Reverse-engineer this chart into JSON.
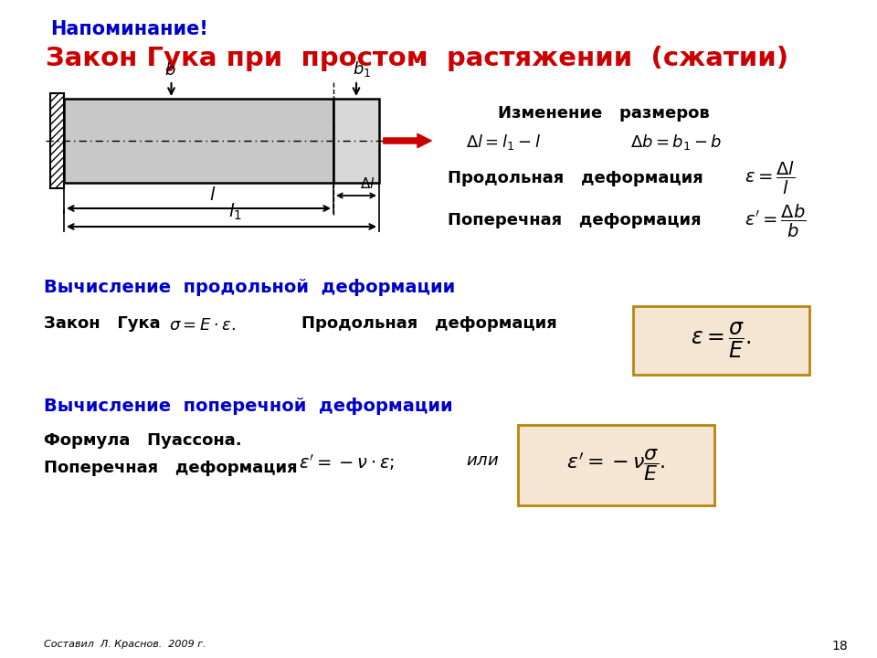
{
  "title_reminder": "Напоминание!",
  "title_main": "Закон Гука при  простом  растяжении  (сжатии)",
  "section1_title": "Вычисление  продольной  деформации",
  "section2_title": "Вычисление  поперечной  деформации",
  "label_izmeneniye": "Изменение   размеров",
  "label_prodol": "Продольная   деформация",
  "label_poperech": "Поперечная   деформация",
  "label_zakon": "Закон   Гука",
  "label_prodol2": "Продольная   деформация",
  "label_puasson1": "Формула   Пуассона.",
  "label_puasson2": "Поперечная   деформация",
  "footer": "Составил  Л. Краснов.  2009 г.",
  "page_num": "18",
  "bg_color": "#ffffff",
  "red_color": "#cc0000",
  "blue_color": "#0000cc",
  "box_fill": "#f5e6d3",
  "box_edge": "#b8860b",
  "gray_bar": "#c8c8c8",
  "gray_bar_ext": "#d8d8d8"
}
